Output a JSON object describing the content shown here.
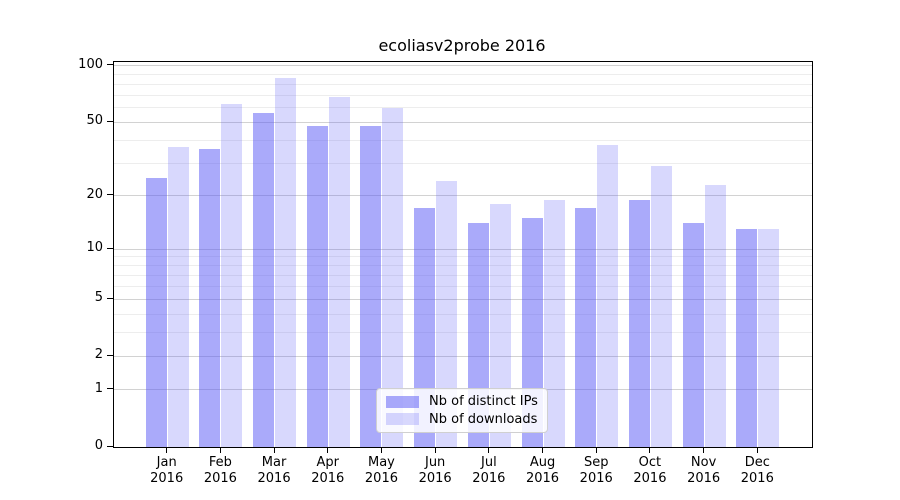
{
  "title": "ecoliasv2probe 2016",
  "chart_data": {
    "type": "bar",
    "title": "ecoliasv2probe 2016",
    "xlabel": "",
    "ylabel": "",
    "categories": [
      "Jan",
      "Feb",
      "Mar",
      "Apr",
      "May",
      "Jun",
      "Jul",
      "Aug",
      "Sep",
      "Oct",
      "Nov",
      "Dec"
    ],
    "category_year_line": "2016",
    "series": [
      {
        "name": "Nb of distinct IPs",
        "color": "#5555f5",
        "alpha": 0.5,
        "values": [
          25,
          36,
          56,
          48,
          48,
          17,
          14,
          15,
          17,
          19,
          14,
          13
        ]
      },
      {
        "name": "Nb of downloads",
        "color": "#5555f5",
        "alpha": 0.23,
        "values": [
          37,
          63,
          86,
          68,
          60,
          24,
          18,
          19,
          38,
          29,
          23,
          13
        ]
      }
    ],
    "yscale": "log1p",
    "ylim": [
      0,
      105
    ],
    "y_major_ticks": [
      100,
      50,
      20,
      10,
      5,
      2,
      1,
      0
    ],
    "y_minor_gridlines": [
      3,
      4,
      6,
      7,
      8,
      9,
      30,
      40,
      60,
      70,
      80,
      90
    ],
    "grid": "horizontal, major and minor",
    "legend_position": "inside lower-center"
  },
  "colors": {
    "background": "#ffffff",
    "spine": "#000000",
    "grid_major": "#d2d2d2",
    "grid_minor": "#ededed",
    "text": "#000000",
    "legend_border": "#d0d0d0",
    "legend_background": "#ffffff"
  }
}
